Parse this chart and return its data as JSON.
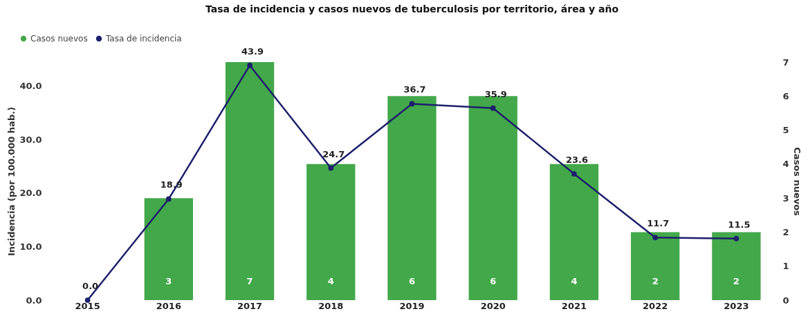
{
  "chart_data": {
    "type": "bar",
    "title": "Tasa de incidencia y casos nuevos de tuberculosis por territorio, área y año",
    "ylabel": "Incidencia (por 100.000 hab.)",
    "y2label": "Casos nuevos",
    "categories": [
      "2015",
      "2016",
      "2017",
      "2018",
      "2019",
      "2020",
      "2021",
      "2022",
      "2023"
    ],
    "series": [
      {
        "name": "Casos nuevos",
        "axis": "y2",
        "color": "#43a84a",
        "values": [
          0,
          3,
          7,
          4,
          6,
          6,
          4,
          2,
          2
        ],
        "value_labels": [
          null,
          "3",
          "7",
          "4",
          "6",
          "6",
          "4",
          "2",
          "2"
        ]
      },
      {
        "name": "Tasa de incidencia",
        "type": "line",
        "color": "#1c1f6b",
        "values": [
          0.0,
          18.9,
          43.9,
          24.7,
          36.7,
          35.9,
          23.6,
          11.7,
          11.5
        ],
        "value_labels": [
          "0.0",
          "18.9",
          "43.9",
          "24.7",
          "36.7",
          "35.9",
          "23.6",
          "11.7",
          "11.5"
        ]
      }
    ],
    "ylim": [
      0,
      44.5
    ],
    "yticks": [
      {
        "value": 0,
        "label": "0.0"
      },
      {
        "value": 10,
        "label": "10.0"
      },
      {
        "value": 20,
        "label": "20.0"
      },
      {
        "value": 30,
        "label": "30.0"
      },
      {
        "value": 40,
        "label": "40.0"
      }
    ],
    "y2lim": [
      0,
      7
    ],
    "y2ticks": [
      0,
      1,
      2,
      3,
      4,
      5,
      6,
      7
    ],
    "grid": false,
    "legend": "top left",
    "marker": "circle",
    "line_style": "solid"
  }
}
